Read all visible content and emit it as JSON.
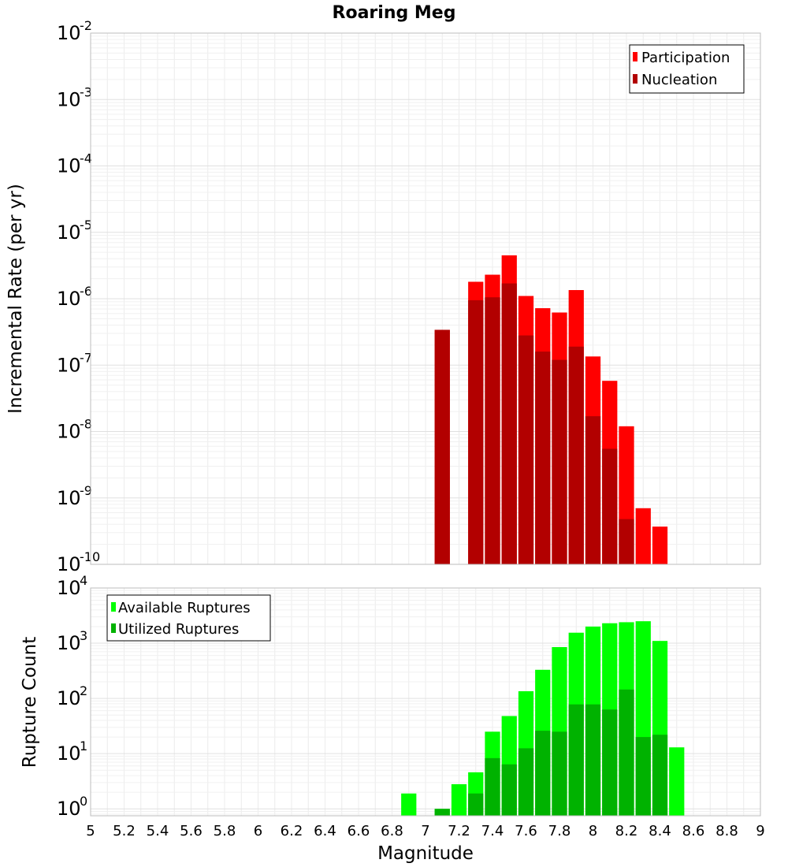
{
  "chart_data": [
    {
      "type": "bar",
      "title": "Roaring Meg",
      "xlabel": "",
      "ylabel": "Incremental Rate (per yr)",
      "yscale": "log",
      "ylim": [
        1e-10,
        0.01
      ],
      "xlim": [
        5,
        9
      ],
      "legend_position": "top-right",
      "y_ticks": [
        {
          "base": "10",
          "exp": "-2",
          "value": 0.01
        },
        {
          "base": "10",
          "exp": "-3",
          "value": 0.001
        },
        {
          "base": "10",
          "exp": "-4",
          "value": 0.0001
        },
        {
          "base": "10",
          "exp": "-5",
          "value": 1e-05
        },
        {
          "base": "10",
          "exp": "-6",
          "value": 1e-06
        },
        {
          "base": "10",
          "exp": "-7",
          "value": 1e-07
        },
        {
          "base": "10",
          "exp": "-8",
          "value": 1e-08
        },
        {
          "base": "10",
          "exp": "-9",
          "value": 1e-09
        },
        {
          "base": "10",
          "exp": "-10",
          "value": 1e-10
        }
      ],
      "series": [
        {
          "name": "Participation",
          "color": "#ff0000",
          "points": [
            {
              "x": 7.1,
              "y": 3.4e-07
            },
            {
              "x": 7.3,
              "y": 1.8e-06
            },
            {
              "x": 7.4,
              "y": 2.3e-06
            },
            {
              "x": 7.5,
              "y": 4.5e-06
            },
            {
              "x": 7.6,
              "y": 1.1e-06
            },
            {
              "x": 7.7,
              "y": 7.2e-07
            },
            {
              "x": 7.8,
              "y": 6.2e-07
            },
            {
              "x": 7.9,
              "y": 1.35e-06
            },
            {
              "x": 8.0,
              "y": 1.35e-07
            },
            {
              "x": 8.1,
              "y": 5.8e-08
            },
            {
              "x": 8.2,
              "y": 1.2e-08
            },
            {
              "x": 8.3,
              "y": 7e-10
            },
            {
              "x": 8.4,
              "y": 3.7e-10
            }
          ]
        },
        {
          "name": "Nucleation",
          "color": "#b20000",
          "points": [
            {
              "x": 7.1,
              "y": 3.4e-07
            },
            {
              "x": 7.3,
              "y": 9.5e-07
            },
            {
              "x": 7.4,
              "y": 1.05e-06
            },
            {
              "x": 7.5,
              "y": 1.7e-06
            },
            {
              "x": 7.6,
              "y": 2.8e-07
            },
            {
              "x": 7.7,
              "y": 1.6e-07
            },
            {
              "x": 7.8,
              "y": 1.2e-07
            },
            {
              "x": 7.9,
              "y": 1.9e-07
            },
            {
              "x": 8.0,
              "y": 1.7e-08
            },
            {
              "x": 8.1,
              "y": 5.5e-09
            },
            {
              "x": 8.2,
              "y": 4.8e-10
            }
          ]
        }
      ]
    },
    {
      "type": "bar",
      "title": "",
      "xlabel": "Magnitude",
      "ylabel": "Rupture Count",
      "yscale": "log",
      "ylim": [
        0.75,
        10000
      ],
      "xlim": [
        5,
        9
      ],
      "legend_position": "top-left",
      "y_ticks": [
        {
          "base": "10",
          "exp": "4",
          "value": 10000
        },
        {
          "base": "10",
          "exp": "3",
          "value": 1000
        },
        {
          "base": "10",
          "exp": "2",
          "value": 100
        },
        {
          "base": "10",
          "exp": "1",
          "value": 10
        },
        {
          "base": "10",
          "exp": "0",
          "value": 1
        }
      ],
      "x_ticks": [
        "5",
        "5.2",
        "5.4",
        "5.6",
        "5.8",
        "6",
        "6.2",
        "6.4",
        "6.6",
        "6.8",
        "7",
        "7.2",
        "7.4",
        "7.6",
        "7.8",
        "8",
        "8.2",
        "8.4",
        "8.6",
        "8.8",
        "9"
      ],
      "series": [
        {
          "name": "Available Ruptures",
          "color": "#00ff00",
          "points": [
            {
              "x": 6.9,
              "y": 1.9
            },
            {
              "x": 7.1,
              "y": 1.0
            },
            {
              "x": 7.2,
              "y": 2.8
            },
            {
              "x": 7.3,
              "y": 4.6
            },
            {
              "x": 7.4,
              "y": 25
            },
            {
              "x": 7.5,
              "y": 48
            },
            {
              "x": 7.6,
              "y": 135
            },
            {
              "x": 7.7,
              "y": 330
            },
            {
              "x": 7.8,
              "y": 850
            },
            {
              "x": 7.9,
              "y": 1550
            },
            {
              "x": 8.0,
              "y": 2000
            },
            {
              "x": 8.1,
              "y": 2300
            },
            {
              "x": 8.2,
              "y": 2400
            },
            {
              "x": 8.3,
              "y": 2500
            },
            {
              "x": 8.4,
              "y": 1100
            },
            {
              "x": 8.5,
              "y": 13
            }
          ]
        },
        {
          "name": "Utilized Ruptures",
          "color": "#00b200",
          "points": [
            {
              "x": 7.1,
              "y": 1.0
            },
            {
              "x": 7.3,
              "y": 1.9
            },
            {
              "x": 7.4,
              "y": 8.3
            },
            {
              "x": 7.5,
              "y": 6.4
            },
            {
              "x": 7.6,
              "y": 12.5
            },
            {
              "x": 7.7,
              "y": 26
            },
            {
              "x": 7.8,
              "y": 25
            },
            {
              "x": 7.9,
              "y": 78
            },
            {
              "x": 8.0,
              "y": 78
            },
            {
              "x": 8.1,
              "y": 63
            },
            {
              "x": 8.2,
              "y": 145
            },
            {
              "x": 8.3,
              "y": 20
            },
            {
              "x": 8.4,
              "y": 22
            }
          ]
        }
      ]
    }
  ]
}
